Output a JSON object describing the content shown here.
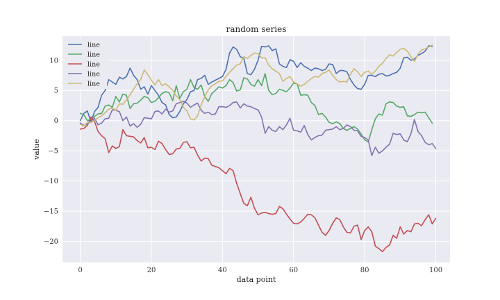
{
  "chart_data": {
    "type": "line",
    "title": "random series",
    "xlabel": "data point",
    "ylabel": "value",
    "xlim": [
      -5,
      104
    ],
    "ylim": [
      -23.5,
      14
    ],
    "xticks": [
      0,
      20,
      40,
      60,
      80,
      100
    ],
    "yticks": [
      -20,
      -15,
      -10,
      -5,
      0,
      5,
      10
    ],
    "grid": true,
    "legend": "top-left",
    "series": [
      {
        "name": "line",
        "color": "#4c72b0",
        "values": [
          0.0,
          1.2,
          1.6,
          -0.2,
          1.5,
          2.2,
          4.2,
          5.0,
          6.8,
          6.4,
          6.0,
          7.2,
          6.9,
          7.3,
          8.7,
          7.5,
          6.8,
          5.2,
          5.6,
          4.4,
          5.8,
          5.0,
          4.2,
          3.0,
          2.6,
          1.0,
          0.5,
          0.6,
          1.5,
          2.8,
          3.5,
          4.8,
          5.0,
          6.8,
          7.0,
          7.5,
          6.0,
          6.4,
          6.7,
          7.0,
          7.3,
          8.5,
          11.2,
          12.2,
          11.8,
          10.6,
          10.3,
          7.8,
          7.6,
          8.5,
          10.0,
          12.3,
          12.2,
          12.4,
          11.6,
          11.9,
          9.4,
          9.0,
          8.8,
          10.1,
          9.8,
          8.8,
          9.6,
          9.0,
          8.7,
          8.3,
          8.7,
          8.6,
          8.3,
          8.5,
          9.4,
          9.3,
          7.8,
          8.3,
          8.3,
          8.1,
          6.8,
          5.9,
          5.3,
          5.2,
          6.0,
          7.5,
          7.5,
          7.3,
          7.7,
          7.8,
          7.4,
          7.5,
          7.8,
          8.0,
          8.7,
          10.4,
          10.5,
          10.0,
          10.2,
          10.8,
          11.1,
          11.5,
          12.4,
          12.3
        ]
      },
      {
        "name": "line",
        "color": "#55a868",
        "values": [
          1.2,
          1.0,
          0.0,
          0.2,
          0.7,
          1.1,
          1.2,
          2.4,
          2.6,
          2.2,
          4.0,
          3.1,
          4.4,
          4.2,
          2.0,
          2.8,
          2.9,
          3.4,
          4.0,
          3.8,
          3.0,
          3.2,
          3.8,
          4.5,
          4.8,
          4.6,
          3.3,
          5.8,
          3.7,
          4.8,
          5.2,
          6.8,
          5.5,
          5.2,
          5.9,
          4.0,
          3.2,
          4.5,
          5.0,
          5.6,
          5.4,
          5.8,
          6.8,
          6.3,
          4.9,
          5.1,
          7.1,
          6.9,
          6.0,
          5.7,
          6.8,
          5.8,
          7.8,
          5.0,
          4.3,
          4.5,
          5.2,
          5.0,
          4.8,
          5.4,
          6.2,
          6.1,
          4.2,
          4.3,
          4.2,
          3.0,
          2.5,
          1.0,
          1.2,
          0.6,
          -0.3,
          -0.5,
          -0.2,
          -0.5,
          -1.3,
          -1.6,
          -1.3,
          -1.0,
          -1.4,
          -2.2,
          -3.2,
          -3.5,
          -1.5,
          0.3,
          1.1,
          0.9,
          2.8,
          3.1,
          3.0,
          2.4,
          2.2,
          2.3,
          0.8,
          0.7,
          1.0,
          1.4,
          1.3,
          1.4,
          0.5,
          -0.4
        ]
      },
      {
        "name": "line",
        "color": "#c44e52",
        "values": [
          -1.4,
          -1.3,
          -0.8,
          0.6,
          -0.1,
          -1.8,
          -2.5,
          -3.0,
          -5.3,
          -4.2,
          -4.6,
          -4.3,
          -1.5,
          -2.5,
          -2.6,
          -2.7,
          -3.3,
          -3.7,
          -2.8,
          -4.5,
          -4.4,
          -4.8,
          -3.4,
          -3.8,
          -4.8,
          -5.6,
          -5.5,
          -4.7,
          -4.6,
          -3.6,
          -3.5,
          -4.5,
          -4.4,
          -5.7,
          -6.7,
          -6.2,
          -6.3,
          -7.4,
          -7.6,
          -7.8,
          -8.3,
          -8.8,
          -7.9,
          -8.3,
          -10.4,
          -12.1,
          -13.7,
          -14.1,
          -12.7,
          -14.5,
          -15.6,
          -15.3,
          -15.2,
          -15.4,
          -15.5,
          -15.4,
          -14.2,
          -14.6,
          -15.5,
          -16.3,
          -17.0,
          -17.1,
          -16.8,
          -16.2,
          -15.5,
          -15.6,
          -16.1,
          -17.3,
          -18.5,
          -19.0,
          -18.2,
          -17.0,
          -16.1,
          -16.4,
          -17.6,
          -18.5,
          -18.6,
          -17.5,
          -17.3,
          -19.7,
          -18.2,
          -17.6,
          -18.4,
          -20.8,
          -21.2,
          -21.7,
          -21.0,
          -20.6,
          -19.0,
          -19.5,
          -17.6,
          -18.8,
          -18.2,
          -18.4,
          -17.1,
          -17.0,
          -17.4,
          -16.4,
          -15.6,
          -17.1,
          -16.2
        ]
      },
      {
        "name": "line",
        "color": "#8172b2",
        "values": [
          -0.4,
          -0.8,
          -0.6,
          -0.1,
          0.4,
          -0.7,
          -0.4,
          0.3,
          0.4,
          1.8,
          1.7,
          1.5,
          0.0,
          0.6,
          -0.9,
          -0.5,
          -1.1,
          -0.6,
          0.5,
          0.4,
          0.3,
          1.5,
          1.6,
          1.1,
          1.9,
          1.4,
          1.6,
          2.8,
          3.0,
          3.2,
          2.9,
          2.2,
          2.6,
          2.9,
          1.7,
          1.2,
          1.4,
          1.0,
          1.1,
          2.3,
          2.3,
          2.2,
          2.5,
          3.0,
          3.1,
          2.1,
          2.8,
          2.4,
          2.3,
          2.0,
          1.8,
          0.6,
          -2.1,
          -1.0,
          -1.6,
          -1.8,
          -1.0,
          -1.5,
          -0.7,
          0.4,
          -1.6,
          -1.7,
          -1.9,
          -0.8,
          -2.3,
          -3.2,
          -2.8,
          -2.5,
          -2.4,
          -1.6,
          -1.5,
          -1.4,
          -1.0,
          -1.5,
          -1.3,
          -0.7,
          -1.0,
          -1.6,
          -1.7,
          -2.6,
          -2.8,
          -3.2,
          -5.8,
          -4.4,
          -5.4,
          -5.0,
          -4.4,
          -3.9,
          -2.1,
          -2.3,
          -2.2,
          -3.2,
          -3.5,
          -2.2,
          0.2,
          -1.8,
          -2.5,
          -3.6,
          -4.0,
          -3.8,
          -4.6
        ]
      },
      {
        "name": "line",
        "color": "#ccb974",
        "values": [
          -0.6,
          -0.9,
          -0.3,
          -0.3,
          0.0,
          0.5,
          0.8,
          1.3,
          1.9,
          2.1,
          1.7,
          2.8,
          2.7,
          3.4,
          4.3,
          5.2,
          6.1,
          6.8,
          8.4,
          7.6,
          6.7,
          5.9,
          6.8,
          5.8,
          6.1,
          5.6,
          5.0,
          4.1,
          3.5,
          2.2,
          1.6,
          0.3,
          0.1,
          0.8,
          2.6,
          4.0,
          5.1,
          5.8,
          6.1,
          6.5,
          6.6,
          7.3,
          8.0,
          8.6,
          9.2,
          9.4,
          10.6,
          10.3,
          10.8,
          11.2,
          11.1,
          10.4,
          10.4,
          9.2,
          8.6,
          8.2,
          7.8,
          6.5,
          7.0,
          7.3,
          6.4,
          6.1,
          5.7,
          6.0,
          6.5,
          7.0,
          7.3,
          7.2,
          7.8,
          8.0,
          8.4,
          7.5,
          6.8,
          6.4,
          6.5,
          6.4,
          7.7,
          8.6,
          8.1,
          7.3,
          8.0,
          8.2,
          7.7,
          8.2,
          9.0,
          9.5,
          10.3,
          10.9,
          10.7,
          11.3,
          11.8,
          12.0,
          11.5,
          10.6,
          9.8,
          11.0,
          11.7,
          11.9,
          12.2,
          12.5
        ]
      }
    ]
  }
}
